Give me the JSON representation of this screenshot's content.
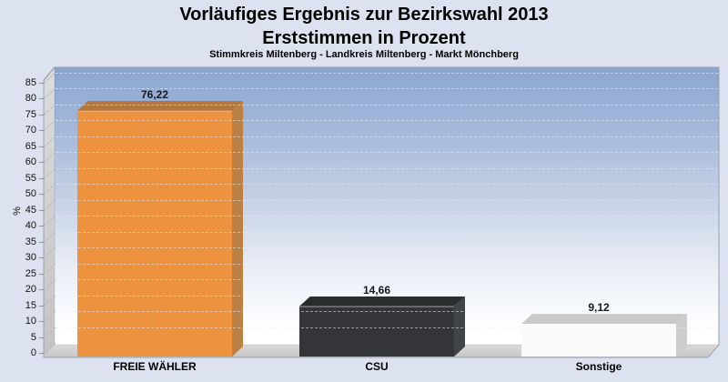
{
  "title": {
    "line1": "Vorläufiges Ergebnis zur Bezirkswahl 2013",
    "line2": "Erststimmen in Prozent",
    "subtitle": "Stimmkreis Miltenberg - Landkreis Miltenberg - Markt Mönchberg"
  },
  "chart_data": {
    "type": "bar",
    "title": "Vorläufiges Ergebnis zur Bezirkswahl 2013 - Erststimmen in Prozent",
    "subtitle": "Stimmkreis Miltenberg - Landkreis Miltenberg - Markt Mönchberg",
    "categories": [
      "FREIE WÄHLER",
      "CSU",
      "Sonstige"
    ],
    "values": [
      76.22,
      14.66,
      9.12
    ],
    "value_labels": [
      "76,22",
      "14,66",
      "9,12"
    ],
    "xlabel": "",
    "ylabel": "%",
    "ylim": [
      0,
      85
    ],
    "yticks": [
      0,
      5,
      10,
      15,
      20,
      25,
      30,
      35,
      40,
      45,
      50,
      55,
      60,
      65,
      70,
      75,
      80,
      85
    ],
    "grid": "horizontal-dashed",
    "legend": "none",
    "style": "3d-bars",
    "bar_colors": [
      {
        "name": "FREIE WÄHLER",
        "front": "#ed9340",
        "top": "#b2773c",
        "side": "#bc8045",
        "edge": "rgba(255,255,255,0.25)"
      },
      {
        "name": "CSU",
        "front": "#333538",
        "top": "#2a2c2e",
        "side": "#404348",
        "edge": "rgba(255,255,255,0.30)"
      },
      {
        "name": "Sonstige",
        "front": "#fafafa",
        "top": "#c9c9c9",
        "side": "#cdcdcd",
        "edge": "#ffffff"
      }
    ],
    "background_colors": {
      "page": "#dde2f1",
      "wall_gradient_top": "#8ba4ce",
      "wall_gradient_bottom": "#ffffff",
      "walls_gray": "#cccccc"
    }
  }
}
